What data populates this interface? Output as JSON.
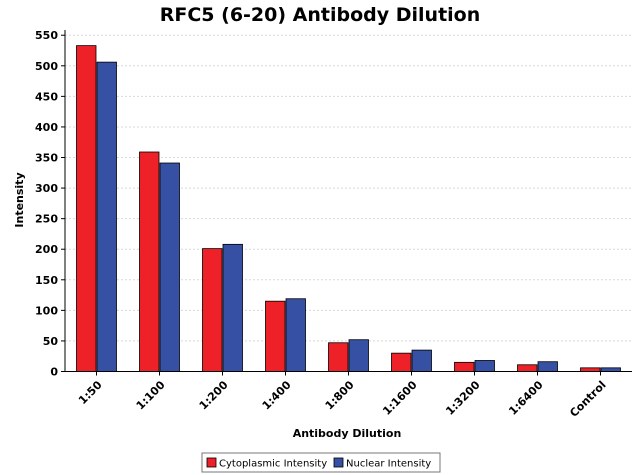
{
  "chart_data": {
    "type": "bar",
    "title": "RFC5 (6-20) Antibody Dilution",
    "xlabel": "Antibody Dilution",
    "ylabel": "Intensity",
    "ylim": [
      0,
      560
    ],
    "yticks": [
      0,
      50,
      100,
      150,
      200,
      250,
      300,
      350,
      400,
      450,
      500,
      550
    ],
    "grid": true,
    "legend_position": "bottom",
    "categories": [
      "1:50",
      "1:100",
      "1:200",
      "1:400",
      "1:800",
      "1:1600",
      "1:3200",
      "1:6400",
      "Control"
    ],
    "series": [
      {
        "name": "Cytoplasmic Intensity",
        "color": "#ee2128",
        "values": [
          533,
          359,
          201,
          115,
          47,
          30,
          15,
          11,
          6
        ]
      },
      {
        "name": "Nuclear Intensity",
        "color": "#3650a4",
        "values": [
          506,
          341,
          208,
          119,
          52,
          35,
          18,
          16,
          6
        ]
      }
    ]
  }
}
